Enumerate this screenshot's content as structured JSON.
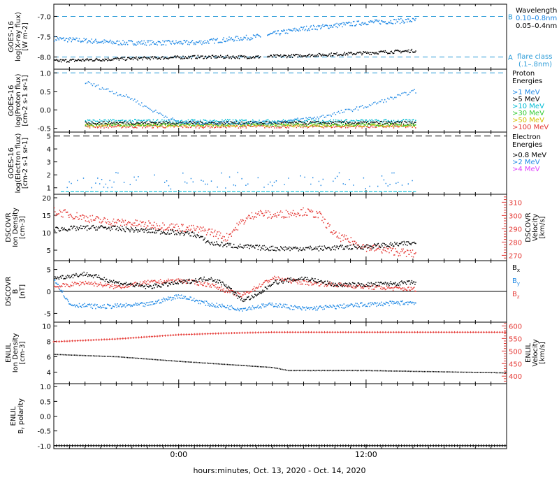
{
  "colors": {
    "black": "#000000",
    "blue": "#1e88e5",
    "cyan": "#00bcd4",
    "green": "#33cc33",
    "yellow": "#d4c000",
    "orange": "#ff8800",
    "red": "#e53935",
    "magenta": "#e040fb",
    "dashed_blue": "#2a9bd8"
  },
  "x_axis": {
    "label": "hours:minutes, Oct. 13, 2020 - Oct. 14, 2020",
    "ticks": [
      {
        "label": "0:00",
        "hour": 0
      },
      {
        "label": "12:00",
        "hour": 12
      }
    ],
    "range_hours": [
      -8,
      21
    ]
  },
  "chart_data": [
    {
      "type": "scatter",
      "panel": "xray",
      "ylabel": "GOES-16 log(X-ray flux) [W m-2]",
      "ylim": [
        -8.3,
        -6.7
      ],
      "y_ticks": [
        "-7.0",
        "-7.5",
        "-8.0"
      ],
      "legend_title": "Wavelength",
      "series": [
        {
          "name": "0.10–0.8nm",
          "color": "blue",
          "approx_y_at_hours": [
            [
              -8,
              -7.55
            ],
            [
              -4,
              -7.65
            ],
            [
              1,
              -7.65
            ],
            [
              5,
              -7.5
            ],
            [
              8,
              -7.3
            ],
            [
              12,
              -7.15
            ],
            [
              15,
              -7.1
            ]
          ]
        },
        {
          "name": "0.05–0.4nm",
          "color": "black",
          "approx_y_at_hours": [
            [
              -8,
              -8.1
            ],
            [
              -4,
              -8.05
            ],
            [
              1,
              -8.0
            ],
            [
              5,
              -8.0
            ],
            [
              9,
              -7.95
            ],
            [
              12,
              -7.9
            ],
            [
              15,
              -7.85
            ]
          ]
        }
      ],
      "flare_levels": [
        {
          "label": "B",
          "y": -7.0
        },
        {
          "label": "A",
          "y": -8.0
        }
      ],
      "flare_class_label": "flare class",
      "flare_class_range": "(.1–.8nm)"
    },
    {
      "type": "scatter",
      "panel": "proton",
      "ylabel": "GOES-16 log(Proton flux) [cm-2 s-1 sr-1]",
      "ylim": [
        -0.6,
        1.1
      ],
      "y_ticks": [
        "1.0",
        "0.5",
        "0.0",
        "-0.5"
      ],
      "legend_title": "Proton Energies",
      "series": [
        {
          "name": ">1 MeV",
          "color": "blue",
          "approx_y_at_hours": [
            [
              -8,
              1.0
            ],
            [
              -6,
              0.75
            ],
            [
              -3,
              0.3
            ],
            [
              -2,
              0.05
            ],
            [
              0,
              -0.35
            ],
            [
              6,
              -0.35
            ],
            [
              9,
              -0.2
            ],
            [
              12,
              0.1
            ],
            [
              15,
              0.5
            ]
          ]
        },
        {
          "name": ">5 MeV",
          "color": "black",
          "approx_y_at_hours": [
            [
              -8,
              -0.35
            ],
            [
              15,
              -0.35
            ]
          ]
        },
        {
          "name": ">10 MeV",
          "color": "cyan",
          "approx_y_at_hours": [
            [
              -8,
              -0.3
            ],
            [
              15,
              -0.3
            ]
          ]
        },
        {
          "name": ">30 MeV",
          "color": "green",
          "approx_y_at_hours": [
            [
              -8,
              -0.4
            ],
            [
              15,
              -0.4
            ]
          ]
        },
        {
          "name": ">50 MeV",
          "color": "yellow",
          "approx_y_at_hours": [
            [
              -8,
              -0.42
            ],
            [
              15,
              -0.42
            ]
          ]
        },
        {
          "name": ">100 MeV",
          "color": "red",
          "approx_y_at_hours": [
            [
              -8,
              -0.45
            ],
            [
              15,
              -0.45
            ]
          ]
        }
      ]
    },
    {
      "type": "scatter",
      "panel": "electron",
      "ylabel": "GOES-16 log(Electron flux) [cm-2 s-1 sr-1]",
      "ylim": [
        0.5,
        5.3
      ],
      "y_ticks": [
        "5",
        "4",
        "3",
        "2",
        "1"
      ],
      "legend_title": "Electron Energies",
      "series": [
        {
          "name": ">0.8 MeV",
          "color": "black",
          "dashed_level": 5.0
        },
        {
          "name": ">2 MeV",
          "color": "blue",
          "approx_y_at_hours": [
            [
              -8,
              1.3
            ],
            [
              15,
              1.3
            ]
          ]
        },
        {
          "name": ">4 MeV",
          "color": "magenta"
        }
      ]
    },
    {
      "type": "scatter",
      "panel": "dscovr-density",
      "ylabel": "DSCOVR Ion Density [cm-3]",
      "ylim": [
        2,
        21
      ],
      "y_ticks": [
        "20",
        "15",
        "10",
        "5"
      ],
      "y2label": "DSCOVR Velocity [km/s]",
      "y2lim": [
        266,
        316
      ],
      "y2_ticks": [
        "310",
        "300",
        "290",
        "280",
        "270"
      ],
      "series": [
        {
          "name": "density",
          "color": "black",
          "approx_y_at_hours": [
            [
              -8,
              11
            ],
            [
              -5,
              11.5
            ],
            [
              -2,
              10.5
            ],
            [
              0,
              10
            ],
            [
              1,
              9.5
            ],
            [
              2,
              7
            ],
            [
              4,
              6
            ],
            [
              6,
              5.5
            ],
            [
              9,
              5.5
            ],
            [
              12,
              6
            ],
            [
              15,
              7
            ]
          ]
        },
        {
          "name": "velocity",
          "color": "red",
          "approx_y_at_hours": [
            [
              -8,
              303
            ],
            [
              -5,
              296
            ],
            [
              -2,
              293
            ],
            [
              0,
              291
            ],
            [
              2,
              288
            ],
            [
              3,
              283
            ],
            [
              4,
              295
            ],
            [
              5,
              302
            ],
            [
              6,
              300
            ],
            [
              8,
              303
            ],
            [
              9,
              300
            ],
            [
              10,
              285
            ],
            [
              12,
              276
            ],
            [
              15,
              271
            ]
          ]
        }
      ]
    },
    {
      "type": "line",
      "panel": "dscovr-b",
      "ylabel": "DSCOVR B [nT]",
      "ylim": [
        -7,
        7
      ],
      "y_ticks": [
        "5",
        "0",
        "-5"
      ],
      "legend": [
        "Bx",
        "By",
        "Bz"
      ],
      "series": [
        {
          "name": "Bx",
          "color": "black",
          "approx_y_at_hours": [
            [
              -8,
              3
            ],
            [
              -6,
              4
            ],
            [
              -4,
              2
            ],
            [
              -2,
              1
            ],
            [
              0,
              2
            ],
            [
              2,
              3
            ],
            [
              3,
              1.5
            ],
            [
              4,
              -2
            ],
            [
              5,
              -1
            ],
            [
              6,
              2
            ],
            [
              8,
              3
            ],
            [
              10,
              1.5
            ],
            [
              12,
              1.5
            ],
            [
              15,
              2
            ]
          ]
        },
        {
          "name": "By",
          "color": "blue",
          "approx_y_at_hours": [
            [
              -8,
              3
            ],
            [
              -7,
              -3
            ],
            [
              -5,
              -3.5
            ],
            [
              -2,
              -3
            ],
            [
              0,
              -1
            ],
            [
              2,
              -3
            ],
            [
              4,
              -4
            ],
            [
              6,
              -3
            ],
            [
              8,
              -4
            ],
            [
              10,
              -3.5
            ],
            [
              12,
              -3
            ],
            [
              15,
              -2.5
            ]
          ]
        },
        {
          "name": "Bz",
          "color": "red",
          "approx_y_at_hours": [
            [
              -8,
              1
            ],
            [
              -6,
              2
            ],
            [
              -4,
              1
            ],
            [
              -2,
              2
            ],
            [
              0,
              2.5
            ],
            [
              2,
              1.5
            ],
            [
              4,
              -1
            ],
            [
              5,
              1
            ],
            [
              6,
              3
            ],
            [
              8,
              2
            ],
            [
              10,
              1.5
            ],
            [
              12,
              1
            ],
            [
              15,
              0.5
            ]
          ]
        }
      ]
    },
    {
      "type": "line",
      "panel": "enlil-density",
      "ylabel": "ENLIL Ion Density [cm-3]",
      "ylim": [
        2.5,
        10.5
      ],
      "y_ticks": [
        "10",
        "8",
        "6",
        "4"
      ],
      "y2label": "ENLIL Velocity [km/s]",
      "y2lim": [
        370,
        615
      ],
      "y2_ticks": [
        "600",
        "550",
        "500",
        "450",
        "400"
      ],
      "series": [
        {
          "name": "density",
          "color": "black",
          "approx_y_at_hours": [
            [
              -8,
              6.3
            ],
            [
              -4,
              6.0
            ],
            [
              0,
              5.4
            ],
            [
              3,
              5.0
            ],
            [
              6,
              4.6
            ],
            [
              7,
              4.2
            ],
            [
              12,
              4.2
            ],
            [
              21,
              3.9
            ]
          ]
        },
        {
          "name": "velocity",
          "color": "red",
          "approx_y_at_hours": [
            [
              -8,
              537
            ],
            [
              -4,
              548
            ],
            [
              0,
              565
            ],
            [
              3,
              571
            ],
            [
              6,
              575
            ],
            [
              12,
              575
            ],
            [
              21,
              575
            ]
          ]
        }
      ]
    },
    {
      "type": "line",
      "panel": "enlil-polarity",
      "ylabel": "ENLIL Br polarity",
      "ylim": [
        -1.1,
        1.1
      ],
      "y_ticks": [
        "1.0",
        "0.5",
        "0.0",
        "-0.5",
        "-1.0"
      ],
      "series": [
        {
          "name": "polarity",
          "color": "black",
          "approx_y_at_hours": [
            [
              -8,
              -1.0
            ],
            [
              21,
              -1.0
            ]
          ]
        }
      ]
    }
  ]
}
